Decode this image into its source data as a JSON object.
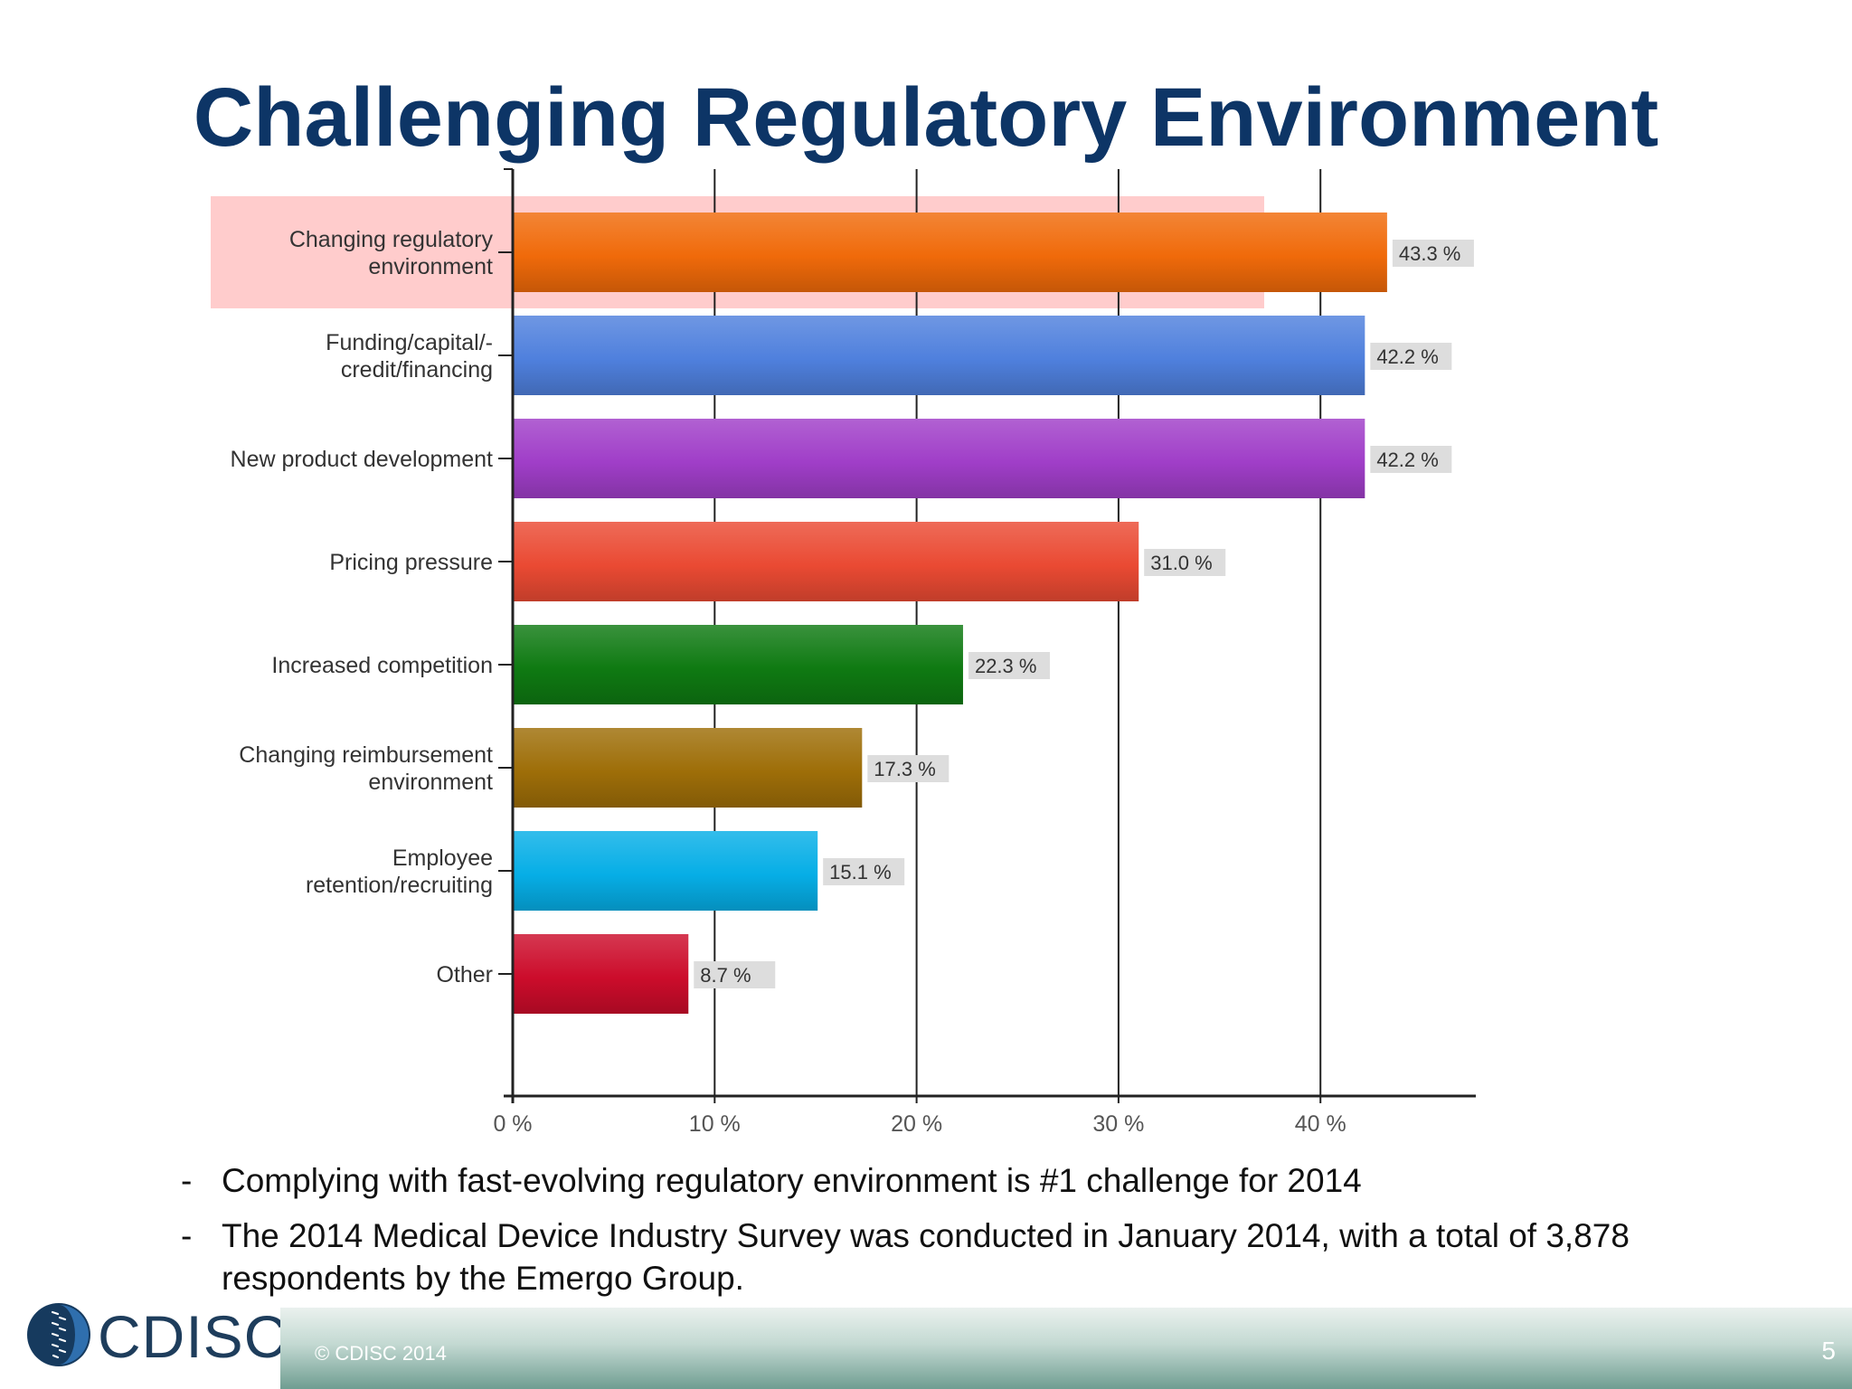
{
  "slide": {
    "title": "Challenging Regulatory Environment",
    "bullets": [
      "Complying with fast-evolving regulatory environment is #1 challenge for 2014",
      "The 2014 Medical Device Industry Survey was conducted in January 2014, with a total of 3,878 respondents by the Emergo Group."
    ],
    "bullet_marker": "-",
    "logo_text": "CDISC",
    "footer_copyright": "© CDISC 2014",
    "page_number": "5"
  },
  "chart_data": {
    "type": "bar",
    "orientation": "horizontal",
    "categories": [
      [
        "Changing regulatory",
        "environment"
      ],
      [
        "Funding/capital/-",
        "credit/financing"
      ],
      [
        "New product development"
      ],
      [
        "Pricing pressure"
      ],
      [
        "Increased competition"
      ],
      [
        "Changing reimbursement",
        "environment"
      ],
      [
        "Employee",
        "retention/recruiting"
      ],
      [
        "Other"
      ]
    ],
    "values": [
      43.3,
      42.2,
      42.2,
      31.0,
      22.3,
      17.3,
      15.1,
      8.7
    ],
    "value_labels": [
      "43.3 %",
      "42.2 %",
      "42.2 %",
      "31.0 %",
      "22.3 %",
      "17.3 %",
      "15.1 %",
      "8.7 %"
    ],
    "colors": [
      "#f06a0a",
      "#4f80dd",
      "#a03ec8",
      "#ea4a33",
      "#0f7a12",
      "#9e6e08",
      "#06aee6",
      "#cc0c2b"
    ],
    "highlight_index": 0,
    "highlight_color": "#ffcccc",
    "xlim": [
      0,
      48
    ],
    "xticks": [
      0,
      10,
      20,
      30,
      40
    ],
    "xtick_labels": [
      "0 %",
      "10 %",
      "20 %",
      "30 %",
      "40 %"
    ],
    "grid": true,
    "title": "",
    "xlabel": "",
    "ylabel": ""
  }
}
